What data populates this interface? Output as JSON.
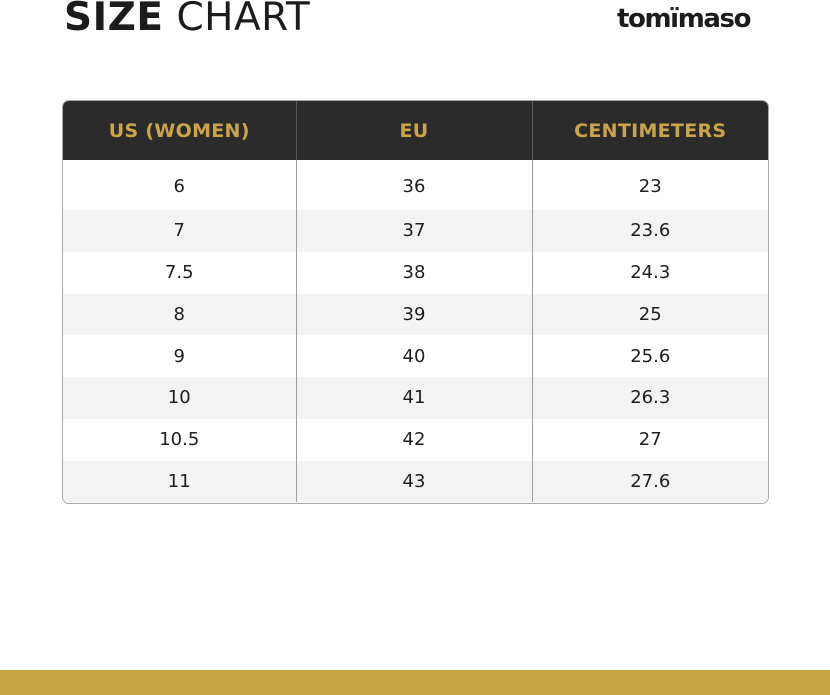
{
  "header": {
    "title_bold": "SIZE",
    "title_light": "CHART",
    "brand": "tomïmaso"
  },
  "colors": {
    "header_bg": "#2c2b2b",
    "header_text": "#caa44a",
    "stripe": "#f3f3f3",
    "footer_bar": "#c6a545"
  },
  "table": {
    "columns": [
      "US (WOMEN)",
      "EU",
      "CENTIMETERS"
    ],
    "rows": [
      [
        "6",
        "36",
        "23"
      ],
      [
        "7",
        "37",
        "23.6"
      ],
      [
        "7.5",
        "38",
        "24.3"
      ],
      [
        "8",
        "39",
        "25"
      ],
      [
        "9",
        "40",
        "25.6"
      ],
      [
        "10",
        "41",
        "26.3"
      ],
      [
        "10.5",
        "42",
        "27"
      ],
      [
        "11",
        "43",
        "27.6"
      ]
    ]
  }
}
